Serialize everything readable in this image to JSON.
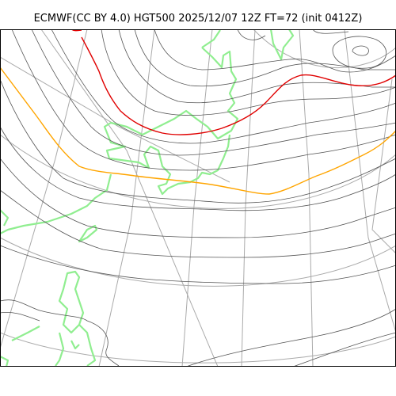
{
  "title": "ECMWF(CC BY 4.0) HGT500 2025/12/07 12Z FT=72 (init 0412Z)",
  "colors": {
    "background": "#ffffff",
    "graticule": "#aaaaaa",
    "contour": "#555555",
    "coastline": "#90ee90",
    "highlight_contour_red": "#e00000",
    "highlight_contour_orange": "#ffa500",
    "frame": "#000000"
  }
}
